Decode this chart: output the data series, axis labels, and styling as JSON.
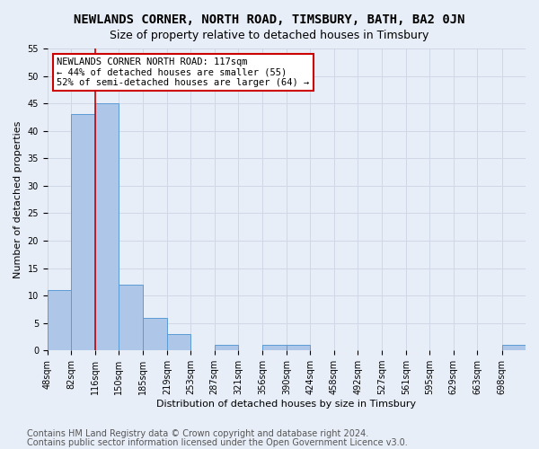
{
  "title": "NEWLANDS CORNER, NORTH ROAD, TIMSBURY, BATH, BA2 0JN",
  "subtitle": "Size of property relative to detached houses in Timsbury",
  "xlabel": "Distribution of detached houses by size in Timsbury",
  "ylabel": "Number of detached properties",
  "footer_line1": "Contains HM Land Registry data © Crown copyright and database right 2024.",
  "footer_line2": "Contains public sector information licensed under the Open Government Licence v3.0.",
  "annotation_line1": "NEWLANDS CORNER NORTH ROAD: 117sqm",
  "annotation_line2": "← 44% of detached houses are smaller (55)",
  "annotation_line3": "52% of semi-detached houses are larger (64) →",
  "subject_size": 117,
  "bar_edges": [
    48,
    82,
    116,
    150,
    185,
    219,
    253,
    287,
    321,
    356,
    390,
    424,
    458,
    492,
    527,
    561,
    595,
    629,
    663,
    698,
    732
  ],
  "bar_heights": [
    11,
    43,
    45,
    12,
    6,
    3,
    0,
    1,
    0,
    1,
    1,
    0,
    0,
    0,
    0,
    0,
    0,
    0,
    0,
    1,
    0
  ],
  "bar_color": "#aec6e8",
  "bar_edge_color": "#5b9bd5",
  "vline_color": "#cc0000",
  "vline_x": 117,
  "ylim": [
    0,
    55
  ],
  "yticks": [
    0,
    5,
    10,
    15,
    20,
    25,
    30,
    35,
    40,
    45,
    50,
    55
  ],
  "grid_color": "#d0d8e8",
  "bg_color": "#e8eef8",
  "annotation_box_color": "#ffffff",
  "annotation_box_edge": "#cc0000",
  "title_fontsize": 10,
  "subtitle_fontsize": 9,
  "label_fontsize": 8,
  "tick_fontsize": 7,
  "footer_fontsize": 7
}
